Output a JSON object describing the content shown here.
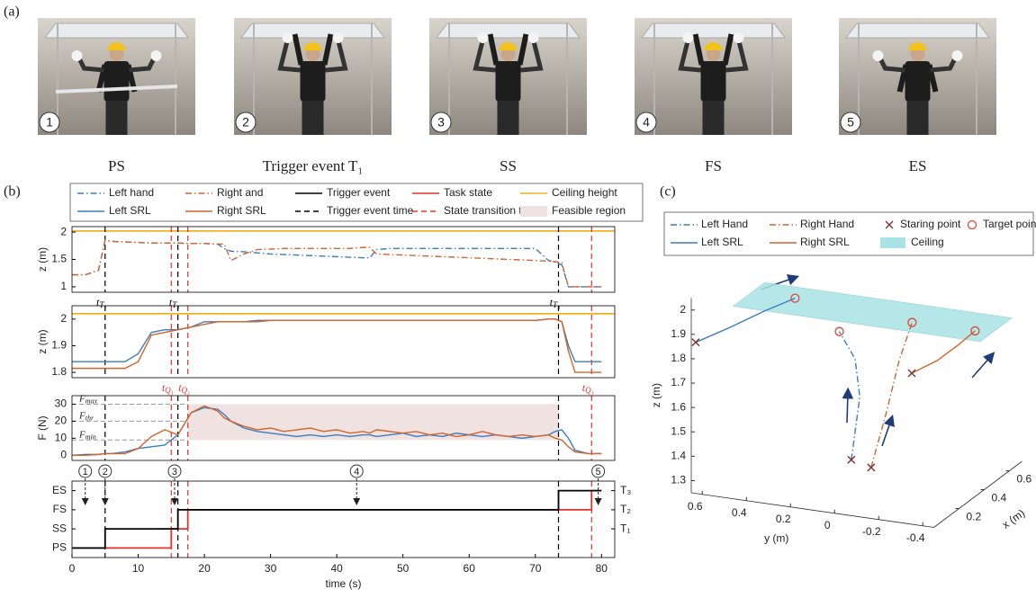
{
  "panel_a": {
    "label": "(a)",
    "photos": [
      {
        "badge": "1",
        "caption": "PS"
      },
      {
        "badge": "2",
        "caption": "Trigger event T₁"
      },
      {
        "badge": "3",
        "caption": "SS"
      },
      {
        "badge": "4",
        "caption": "FS"
      },
      {
        "badge": "5",
        "caption": "ES"
      }
    ]
  },
  "panel_b": {
    "label": "(b)",
    "trigger_times": {
      "name": "Trigger event time",
      "color": "#000000",
      "dash": "dashed",
      "x": [
        5,
        16,
        73.5
      ],
      "labels": [
        {
          "t": "t",
          "sub": "T₁"
        },
        {
          "t": "t",
          "sub": "T₂"
        },
        {
          "t": "t",
          "sub": "T₃"
        }
      ]
    },
    "transition_times": {
      "name": "State transition time",
      "color": "#e8302a",
      "dash": "dashed",
      "x": [
        15,
        17.5,
        78.5
      ],
      "labels": [
        {
          "t": "t",
          "sub": "Q₁"
        },
        {
          "t": "t",
          "sub": "Q₂"
        },
        {
          "t": "t",
          "sub": "Q₃"
        }
      ]
    },
    "steps": {
      "x": [
        2,
        5,
        15.5,
        43,
        79.5
      ],
      "labels": [
        "1",
        "2",
        "3",
        "4",
        "5"
      ]
    }
  },
  "chart_data": [
    {
      "type": "line",
      "ylabel": "z (m)",
      "xlim": [
        0,
        82
      ],
      "ylim": [
        0.9,
        2.1
      ],
      "yticks": [
        1,
        1.5,
        2
      ],
      "x": [
        0,
        2,
        4,
        5,
        6,
        8,
        10,
        12,
        14,
        16,
        18,
        20,
        22,
        23,
        24,
        26,
        28,
        30,
        32,
        34,
        36,
        38,
        40,
        42,
        44,
        45,
        46,
        48,
        50,
        52,
        54,
        56,
        58,
        60,
        62,
        64,
        66,
        68,
        70,
        72,
        73,
        74,
        75,
        76,
        78,
        80
      ],
      "series": [
        {
          "name": "Left hand",
          "color": "#3a7dc0",
          "dash": "dashdot",
          "values": [
            1.22,
            1.22,
            1.3,
            1.85,
            1.83,
            1.82,
            1.81,
            1.8,
            1.8,
            1.8,
            1.79,
            1.79,
            1.78,
            1.7,
            1.65,
            1.64,
            1.62,
            1.6,
            1.59,
            1.58,
            1.57,
            1.56,
            1.55,
            1.54,
            1.53,
            1.53,
            1.68,
            1.7,
            1.7,
            1.7,
            1.7,
            1.7,
            1.7,
            1.7,
            1.7,
            1.7,
            1.7,
            1.7,
            1.7,
            1.48,
            1.45,
            1.4,
            1,
            1,
            1,
            1
          ]
        },
        {
          "name": "Right and",
          "color": "#d2642c",
          "dash": "dashdot",
          "values": [
            1.22,
            1.22,
            1.3,
            1.85,
            1.83,
            1.82,
            1.81,
            1.8,
            1.8,
            1.8,
            1.79,
            1.79,
            1.78,
            1.78,
            1.48,
            1.6,
            1.68,
            1.69,
            1.7,
            1.7,
            1.7,
            1.7,
            1.7,
            1.7,
            1.72,
            1.72,
            1.6,
            1.59,
            1.58,
            1.57,
            1.56,
            1.55,
            1.54,
            1.53,
            1.52,
            1.51,
            1.5,
            1.49,
            1.48,
            1.47,
            1.46,
            1.44,
            1,
            1,
            1,
            1
          ]
        }
      ],
      "reference_line": {
        "name": "Ceiling height",
        "color": "#f0b323",
        "dash": "solid",
        "value": 2.02
      }
    },
    {
      "type": "line",
      "ylabel": "z (m)",
      "xlim": [
        0,
        82
      ],
      "ylim": [
        1.78,
        2.05
      ],
      "yticks": [
        1.8,
        1.9,
        2
      ],
      "x": [
        0,
        2,
        4,
        5,
        6,
        8,
        10,
        12,
        14,
        16,
        18,
        20,
        22,
        23,
        24,
        26,
        28,
        30,
        32,
        34,
        36,
        38,
        40,
        42,
        44,
        45,
        46,
        48,
        50,
        52,
        54,
        56,
        58,
        60,
        62,
        64,
        66,
        68,
        70,
        72,
        73,
        74,
        75,
        76,
        78,
        80
      ],
      "series": [
        {
          "name": "Left SRL",
          "color": "#3a7dc0",
          "dash": "solid",
          "values": [
            1.84,
            1.84,
            1.84,
            1.84,
            1.84,
            1.84,
            1.87,
            1.95,
            1.96,
            1.96,
            1.97,
            1.99,
            1.99,
            1.99,
            1.99,
            1.99,
            1.995,
            1.995,
            1.995,
            1.995,
            1.995,
            1.995,
            1.995,
            1.995,
            1.995,
            1.995,
            1.995,
            1.995,
            1.995,
            1.995,
            1.995,
            1.995,
            1.995,
            1.995,
            1.995,
            1.995,
            1.995,
            1.995,
            1.995,
            2,
            2,
            1.99,
            1.9,
            1.84,
            1.84,
            1.84
          ]
        },
        {
          "name": "Right SRL",
          "color": "#d2642c",
          "dash": "solid",
          "values": [
            1.815,
            1.815,
            1.815,
            1.815,
            1.815,
            1.815,
            1.84,
            1.94,
            1.95,
            1.96,
            1.97,
            1.98,
            1.99,
            1.99,
            1.99,
            1.99,
            1.99,
            1.995,
            1.995,
            1.995,
            1.995,
            1.995,
            1.995,
            1.995,
            1.995,
            1.995,
            1.995,
            1.995,
            1.995,
            1.995,
            1.995,
            1.995,
            1.995,
            1.995,
            1.995,
            1.995,
            1.995,
            1.995,
            1.995,
            2,
            2,
            1.99,
            1.88,
            1.8,
            1.8,
            1.8
          ]
        }
      ],
      "reference_line": {
        "color": "#f0b323",
        "dash": "solid",
        "value": 2.02
      }
    },
    {
      "type": "line",
      "ylabel": "F (N)",
      "xlim": [
        0,
        82
      ],
      "ylim": [
        -3,
        35
      ],
      "yticks": [
        0,
        10,
        20,
        30
      ],
      "x": [
        0,
        2,
        4,
        5,
        6,
        8,
        10,
        12,
        14,
        16,
        18,
        20,
        22,
        23,
        24,
        26,
        28,
        30,
        32,
        34,
        36,
        38,
        40,
        42,
        44,
        45,
        46,
        48,
        50,
        52,
        54,
        56,
        58,
        60,
        62,
        64,
        66,
        68,
        70,
        72,
        73,
        74,
        75,
        76,
        78,
        80
      ],
      "region": {
        "name": "Feasible region",
        "color": "#f1e2e2",
        "x": [
          17.5,
          73.5
        ],
        "y": [
          9,
          30
        ]
      },
      "thresholds": [
        {
          "value": 30,
          "label": "F",
          "sub": "max"
        },
        {
          "value": 20,
          "label": "F",
          "sub": "thr"
        },
        {
          "value": 9,
          "label": "F",
          "sub": "min"
        }
      ],
      "series": [
        {
          "color": "#3a7dc0",
          "dash": "solid",
          "values": [
            0,
            0.5,
            0.5,
            1,
            1,
            2,
            4,
            5,
            6,
            12,
            25,
            28,
            27,
            24,
            20,
            16,
            14,
            13,
            12,
            11,
            12,
            11,
            12,
            11,
            12,
            12,
            11,
            12,
            13,
            11,
            12,
            11,
            13,
            12,
            11,
            12,
            11,
            10,
            11,
            12,
            14,
            15,
            10,
            3,
            1,
            1
          ]
        },
        {
          "color": "#d2642c",
          "dash": "solid",
          "values": [
            0,
            0,
            0.5,
            1,
            1,
            1,
            4,
            11,
            15,
            12,
            25,
            29,
            26,
            22,
            20,
            17,
            15,
            16,
            14,
            15,
            16,
            14,
            15,
            13,
            14,
            13,
            15,
            14,
            13,
            14,
            12,
            13,
            11,
            12,
            14,
            12,
            11,
            12,
            11,
            12,
            10,
            9,
            5,
            2,
            1,
            1
          ]
        }
      ]
    },
    {
      "type": "step",
      "xlim": [
        0,
        82
      ],
      "ylim": [
        -0.5,
        3.5
      ],
      "y2lim": [
        -0.5,
        3.5
      ],
      "xlabel": "time (s)",
      "xticks": [
        0,
        10,
        20,
        30,
        40,
        50,
        60,
        70,
        80
      ],
      "yticks": [
        {
          "value": 0,
          "label": "PS"
        },
        {
          "value": 1,
          "label": "SS"
        },
        {
          "value": 2,
          "label": "FS"
        },
        {
          "value": 3,
          "label": "ES"
        }
      ],
      "y2ticks": [
        {
          "value": 1,
          "label": "T₁"
        },
        {
          "value": 2,
          "label": "T₂"
        },
        {
          "value": 3,
          "label": "T₃"
        }
      ],
      "series": [
        {
          "name": "Trigger event",
          "color": "#000000",
          "dash": "solid",
          "x": [
            0,
            5,
            16,
            73.5,
            80
          ],
          "values": [
            0,
            1,
            2,
            3,
            3
          ]
        },
        {
          "name": "Task state",
          "color": "#e8302a",
          "dash": "solid",
          "x": [
            0,
            15,
            17.5,
            78.5,
            80
          ],
          "values": [
            0,
            1,
            2,
            3,
            3
          ]
        }
      ]
    },
    {
      "type": "line3d",
      "panel_label": "(c)",
      "xlabel": "x (m)",
      "ylabel": "y (m)",
      "zlabel": "z (m)",
      "xlim": [
        0,
        0.7
      ],
      "ylim": [
        -0.45,
        0.65
      ],
      "zlim": [
        1.25,
        2.05
      ],
      "xticks": [
        0.2,
        0.4,
        0.6
      ],
      "yticks": [
        0.6,
        0.4,
        0.2,
        0,
        -0.2,
        -0.4
      ],
      "zticks": [
        1.3,
        1.4,
        1.5,
        1.6,
        1.7,
        1.8,
        1.9,
        2
      ],
      "series": [
        {
          "name": "Left Hand",
          "color": "#3a7dc0",
          "dash": "dashdot",
          "x": [
            0.15,
            0.2,
            0.25,
            0.3
          ],
          "y": [
            0.01,
            0,
            0.05,
            0.15
          ],
          "z": [
            1.41,
            1.65,
            1.78,
            1.86
          ]
        },
        {
          "name": "Right Hand",
          "color": "#d2642c",
          "dash": "dashdot",
          "x": [
            0.15,
            0.2,
            0.25,
            0.3
          ],
          "y": [
            -0.08,
            -0.12,
            -0.15,
            -0.18
          ],
          "z": [
            1.39,
            1.6,
            1.8,
            1.94
          ]
        },
        {
          "name": "Left SRL",
          "color": "#3a7dc0",
          "dash": "solid",
          "x": [
            0,
            0.05,
            0.1,
            0.15
          ],
          "y": [
            0.63,
            0.5,
            0.38,
            0.265
          ],
          "z": [
            1.87,
            1.93,
            1.99,
            2.04
          ]
        },
        {
          "name": "Right SRL",
          "color": "#d2642c",
          "dash": "solid",
          "x": [
            0,
            0.08,
            0.16,
            0.24
          ],
          "y": [
            -0.35,
            -0.42,
            -0.47,
            -0.5
          ],
          "z": [
            1.87,
            1.9,
            1.94,
            1.97
          ]
        }
      ],
      "start_points": {
        "name": "Staring point",
        "color": "#7a3030",
        "x": [
          0.15,
          0.15,
          0,
          0
        ],
        "y": [
          0.01,
          -0.08,
          0.63,
          -0.35
        ],
        "z": [
          1.41,
          1.39,
          1.87,
          1.87
        ]
      },
      "target_points": {
        "name": "Target point",
        "color": "#e0453a",
        "x": [
          0.3,
          0.3,
          0.15,
          0.24
        ],
        "y": [
          0.15,
          -0.18,
          0.265,
          -0.5
        ],
        "z": [
          1.86,
          1.94,
          2.04,
          1.97
        ]
      },
      "ceiling": {
        "name": "Ceiling",
        "color": "#a9e3e4",
        "x": [
          0,
          0.25
        ],
        "y": [
          0.46,
          -0.66
        ],
        "z": 2.04
      }
    }
  ]
}
